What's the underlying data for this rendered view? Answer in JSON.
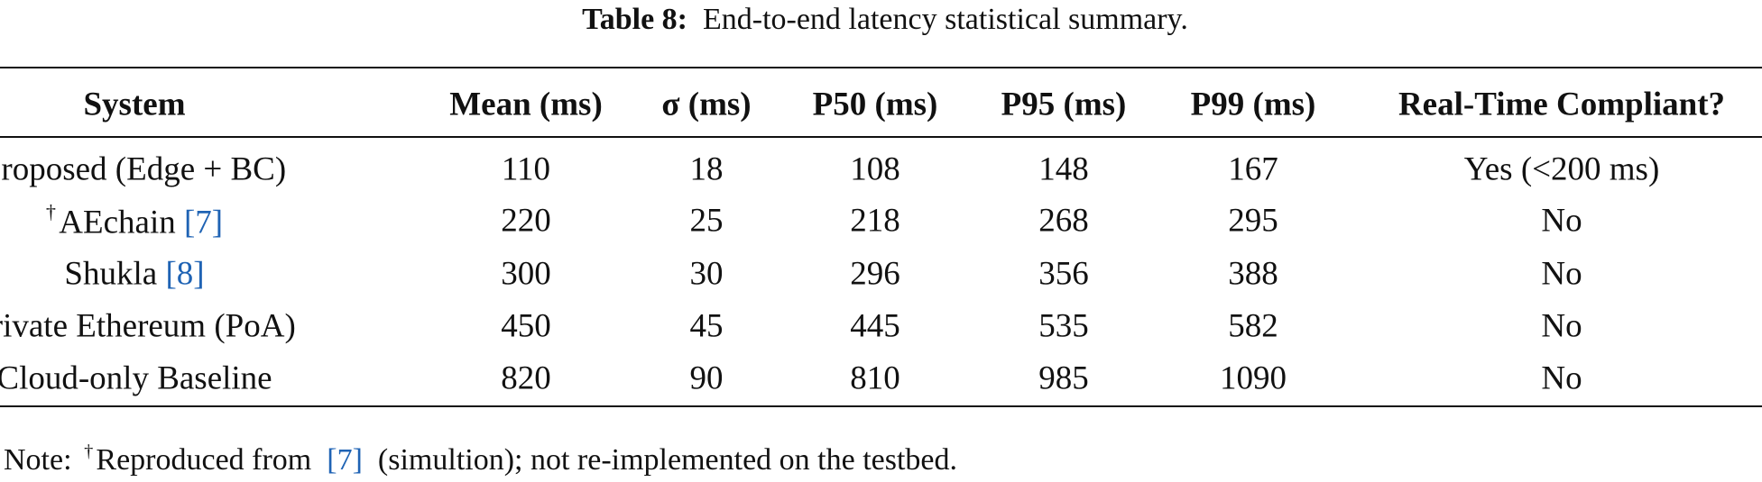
{
  "caption": {
    "label": "Table 8:",
    "text": "End-to-end latency statistical summary."
  },
  "table": {
    "header": [
      "System",
      "Mean (ms)",
      "σ (ms)",
      "P50 (ms)",
      "P95 (ms)",
      "P99 (ms)",
      "Real-Time Compliant?"
    ],
    "rows": [
      [
        {
          "name": "Proposed (Edge + BC)"
        },
        110,
        18,
        108,
        148,
        167,
        "Yes (<200 ms)"
      ],
      [
        {
          "mark": "†",
          "name": "AEchain",
          "ref": "[7]"
        },
        220,
        25,
        218,
        268,
        295,
        "No"
      ],
      [
        {
          "name": "Shukla",
          "ref": "[8]"
        },
        300,
        30,
        296,
        356,
        388,
        "No"
      ],
      [
        {
          "name": "Private Ethereum (PoA)"
        },
        450,
        45,
        445,
        535,
        582,
        "No"
      ],
      [
        {
          "name": "Cloud-only Baseline"
        },
        820,
        90,
        810,
        985,
        1090,
        "No"
      ]
    ]
  },
  "note": {
    "label": "Note:",
    "mark": "†",
    "text": "Reproduced from",
    "ref": "[7]",
    "rest": "(simultion); not re-implemented on the testbed."
  }
}
